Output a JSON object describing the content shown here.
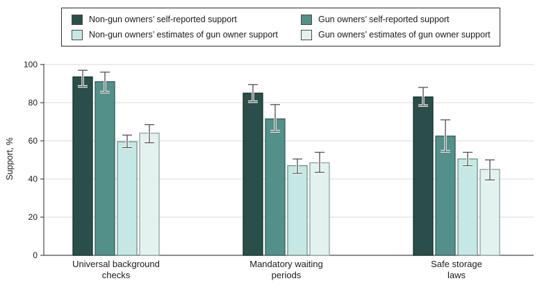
{
  "colors": {
    "grid": "#dadada",
    "axis": "#4a4a4a",
    "text": "#1a1a1a",
    "category_text": "#1a1a1a",
    "error_core": "#4d4d4d",
    "error_halo": "#ffffff",
    "legend_border": "#2b2b2b",
    "background": "#ffffff"
  },
  "chart_data": {
    "type": "bar",
    "title": "",
    "xlabel": "",
    "ylabel": "Support, %",
    "ylim": [
      0,
      100
    ],
    "y_ticks": [
      0,
      20,
      40,
      60,
      80,
      100
    ],
    "grid": true,
    "legend_position": "top-boxed",
    "error_bars": "95% CI",
    "categories": [
      "Universal background checks",
      "Mandatory waiting periods",
      "Safe storage laws"
    ],
    "category_lines": [
      [
        "Universal background",
        "checks"
      ],
      [
        "Mandatory waiting",
        "periods"
      ],
      [
        "Safe storage",
        "laws"
      ]
    ],
    "series": [
      {
        "name": "Non-gun owners’ self-reported support",
        "color": "#2a4f4b",
        "border": "#132e2b",
        "values": [
          93.5,
          85,
          83
        ],
        "ci_low": [
          88.5,
          80.5,
          78.5
        ],
        "ci_high": [
          97,
          89.5,
          88
        ]
      },
      {
        "name": "Gun owners’ self-reported support",
        "color": "#53908a",
        "border": "#2f5f5a",
        "values": [
          91,
          71.5,
          62.5
        ],
        "ci_low": [
          85.5,
          65,
          54.5
        ],
        "ci_high": [
          96,
          79,
          71
        ]
      },
      {
        "name": "Non-gun owners’ estimates of gun owner support",
        "color": "#c6e8e4",
        "border": "#6f8f8b",
        "values": [
          59.5,
          47,
          50.5
        ],
        "ci_low": [
          56.5,
          43,
          47
        ],
        "ci_high": [
          63,
          50.5,
          54
        ]
      },
      {
        "name": "Gun owners’ estimates of gun owner support",
        "color": "#e4f2ef",
        "border": "#8aa3a0",
        "values": [
          64,
          48.5,
          45
        ],
        "ci_low": [
          59,
          43.5,
          39.5
        ],
        "ci_high": [
          68.5,
          54,
          50
        ]
      }
    ]
  }
}
